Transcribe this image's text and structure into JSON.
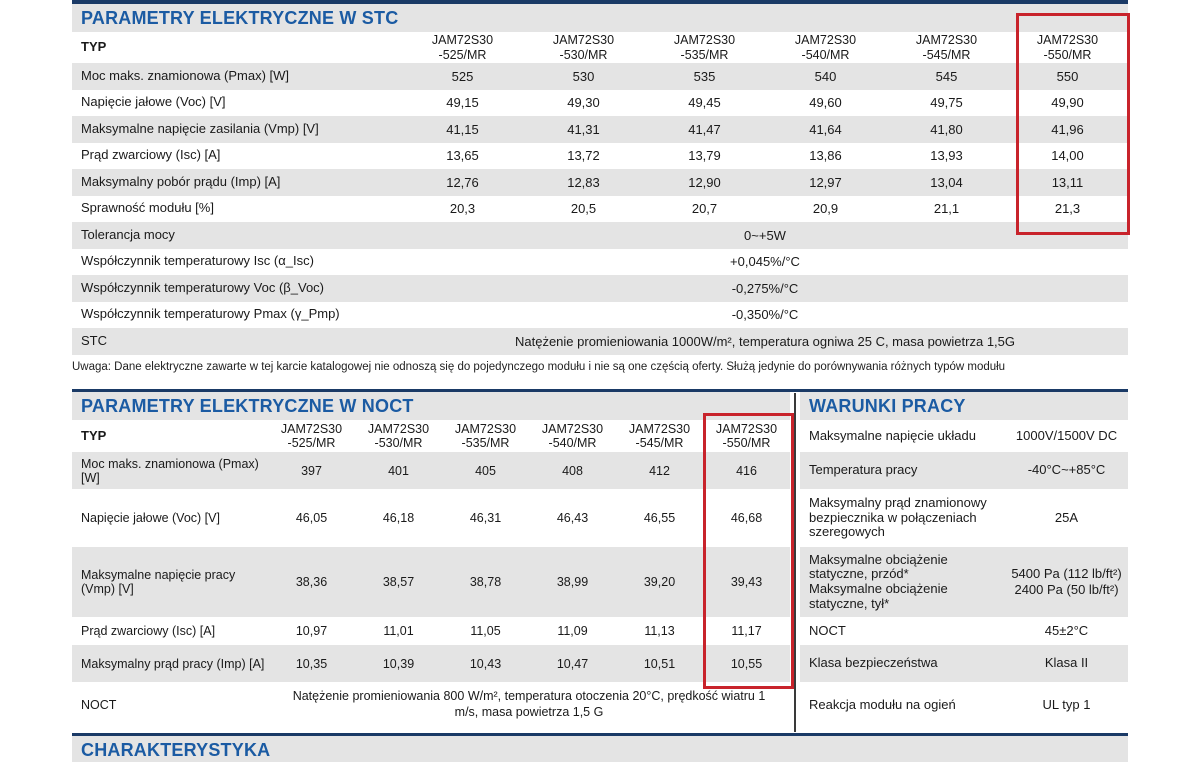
{
  "highlight_color": "#c8232b",
  "accent_blue": "#1b5ba3",
  "stc": {
    "title": "PARAMETRY ELEKTRYCZNE W STC",
    "type_label": "TYP",
    "models": [
      {
        "name": "JAM72S30",
        "variant": "-525/MR"
      },
      {
        "name": "JAM72S30",
        "variant": "-530/MR"
      },
      {
        "name": "JAM72S30",
        "variant": "-535/MR"
      },
      {
        "name": "JAM72S30",
        "variant": "-540/MR"
      },
      {
        "name": "JAM72S30",
        "variant": "-545/MR"
      },
      {
        "name": "JAM72S30",
        "variant": "-550/MR"
      }
    ],
    "rows": [
      {
        "label": "Moc maks. znamionowa (Pmax) [W]",
        "values": [
          "525",
          "530",
          "535",
          "540",
          "545",
          "550"
        ]
      },
      {
        "label": "Napięcie jałowe (Voc) [V]",
        "values": [
          "49,15",
          "49,30",
          "49,45",
          "49,60",
          "49,75",
          "49,90"
        ]
      },
      {
        "label": "Maksymalne napięcie zasilania (Vmp) [V]",
        "values": [
          "41,15",
          "41,31",
          "41,47",
          "41,64",
          "41,80",
          "41,96"
        ]
      },
      {
        "label": "Prąd zwarciowy (Isc) [A]",
        "values": [
          "13,65",
          "13,72",
          "13,79",
          "13,86",
          "13,93",
          "14,00"
        ]
      },
      {
        "label": "Maksymalny pobór prądu (Imp) [A]",
        "values": [
          "12,76",
          "12,83",
          "12,90",
          "12,97",
          "13,04",
          "13,11"
        ]
      },
      {
        "label": "Sprawność modułu [%]",
        "values": [
          "20,3",
          "20,5",
          "20,7",
          "20,9",
          "21,1",
          "21,3"
        ]
      }
    ],
    "span_rows": [
      {
        "label": "Tolerancja mocy",
        "value": "0~+5W"
      },
      {
        "label": "Współczynnik temperaturowy Isc (α_Isc)",
        "value": "+0,045%/°C"
      },
      {
        "label": "Współczynnik temperaturowy Voc (β_Voc)",
        "value": "-0,275%/°C"
      },
      {
        "label": "Współczynnik temperaturowy Pmax (γ_Pmp)",
        "value": "-0,350%/°C"
      },
      {
        "label": "STC",
        "value": "Natężenie promieniowania 1000W/m², temperatura ogniwa 25 C, masa powietrza 1,5G"
      }
    ]
  },
  "note": "Uwaga: Dane elektryczne zawarte w tej karcie katalogowej nie odnoszą się do pojedynczego modułu i nie są one częścią oferty. Służą jedynie do porównywania różnych typów modułu",
  "noct": {
    "title": "PARAMETRY ELEKTRYCZNE W NOCT",
    "type_label": "TYP",
    "models": [
      {
        "name": "JAM72S30",
        "variant": "-525/MR"
      },
      {
        "name": "JAM72S30",
        "variant": "-530/MR"
      },
      {
        "name": "JAM72S30",
        "variant": "-535/MR"
      },
      {
        "name": "JAM72S30",
        "variant": "-540/MR"
      },
      {
        "name": "JAM72S30",
        "variant": "-545/MR"
      },
      {
        "name": "JAM72S30",
        "variant": "-550/MR"
      }
    ],
    "rows": [
      {
        "label": "Moc maks. znamionowa (Pmax) [W]",
        "values": [
          "397",
          "401",
          "405",
          "408",
          "412",
          "416"
        ]
      },
      {
        "label": "Napięcie jałowe (Voc) [V]",
        "values": [
          "46,05",
          "46,18",
          "46,31",
          "46,43",
          "46,55",
          "46,68"
        ]
      },
      {
        "label": "Maksymalne napięcie pracy (Vmp) [V]",
        "values": [
          "38,36",
          "38,57",
          "38,78",
          "38,99",
          "39,20",
          "39,43"
        ]
      },
      {
        "label": "Prąd zwarciowy (Isc) [A]",
        "values": [
          "10,97",
          "11,01",
          "11,05",
          "11,09",
          "11,13",
          "11,17"
        ]
      },
      {
        "label": "Maksymalny prąd pracy (Imp) [A]",
        "values": [
          "10,35",
          "10,39",
          "10,43",
          "10,47",
          "10,51",
          "10,55"
        ]
      }
    ],
    "span_row": {
      "label": "NOCT",
      "value": "Natężenie promieniowania 800 W/m², temperatura otoczenia 20°C, prędkość wiatru 1 m/s, masa powietrza 1,5 G"
    }
  },
  "work": {
    "title": "WARUNKI PRACY",
    "rows": [
      {
        "label": "Maksymalne napięcie układu",
        "value": "1000V/1500V DC"
      },
      {
        "label": "Temperatura pracy",
        "value": "-40°C~+85°C"
      },
      {
        "label": "Maksymalny prąd znamionowy bezpiecznika w połączeniach szeregowych",
        "value": "25A"
      },
      {
        "label": "Maksymalne obciążenie statyczne, przód*\nMaksymalne obciążenie statyczne, tył*",
        "value": "5400 Pa (112 lb/ft²)\n2400 Pa (50 lb/ft²)"
      },
      {
        "label": "NOCT",
        "value": "45±2°C"
      },
      {
        "label": "Klasa bezpieczeństwa",
        "value": "Klasa II"
      },
      {
        "label": "Reakcja modułu na ogień",
        "value": "UL typ 1"
      }
    ]
  },
  "characteristics": {
    "title": "CHARAKTERYSTYKA"
  }
}
